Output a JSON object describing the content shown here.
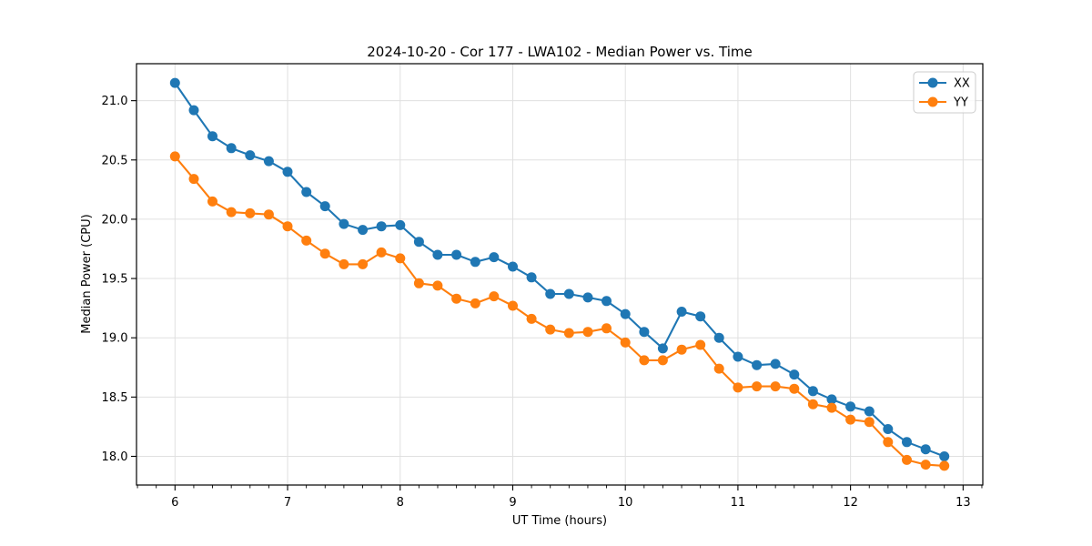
{
  "chart_data": {
    "type": "line",
    "title": "2024-10-20 - Cor 177 - LWA102 - Median Power vs. Time",
    "xlabel": "UT Time (hours)",
    "ylabel": "Median Power (CPU)",
    "xlim": [
      5.658,
      13.175
    ],
    "ylim": [
      17.758,
      21.312
    ],
    "xticks": [
      6,
      7,
      8,
      9,
      10,
      11,
      12,
      13
    ],
    "yticks": [
      18.0,
      18.5,
      19.0,
      19.5,
      20.0,
      20.5,
      21.0
    ],
    "x_minor_tick_step": 0.1667,
    "grid": true,
    "legend_position": "upper right",
    "x": [
      6.0,
      6.167,
      6.333,
      6.5,
      6.667,
      6.833,
      7.0,
      7.167,
      7.333,
      7.5,
      7.667,
      7.833,
      8.0,
      8.167,
      8.333,
      8.5,
      8.667,
      8.833,
      9.0,
      9.167,
      9.333,
      9.5,
      9.667,
      9.833,
      10.0,
      10.167,
      10.333,
      10.5,
      10.667,
      10.833,
      11.0,
      11.167,
      11.333,
      11.5,
      11.667,
      11.833,
      12.0,
      12.167,
      12.333,
      12.5,
      12.667,
      12.833
    ],
    "series": [
      {
        "name": "XX",
        "color": "#1f77b4",
        "values": [
          21.15,
          20.92,
          20.7,
          20.6,
          20.54,
          20.49,
          20.4,
          20.23,
          20.11,
          19.96,
          19.91,
          19.94,
          19.95,
          19.81,
          19.7,
          19.7,
          19.64,
          19.68,
          19.6,
          19.51,
          19.37,
          19.37,
          19.34,
          19.31,
          19.2,
          19.05,
          18.91,
          19.22,
          19.18,
          19.0,
          18.84,
          18.77,
          18.78,
          18.69,
          18.55,
          18.48,
          18.42,
          18.38,
          18.23,
          18.12,
          18.06,
          18.0
        ]
      },
      {
        "name": "YY",
        "color": "#ff7f0e",
        "values": [
          20.53,
          20.34,
          20.15,
          20.06,
          20.05,
          20.04,
          19.94,
          19.82,
          19.71,
          19.62,
          19.62,
          19.72,
          19.67,
          19.46,
          19.44,
          19.33,
          19.29,
          19.35,
          19.27,
          19.16,
          19.07,
          19.04,
          19.05,
          19.08,
          18.96,
          18.81,
          18.81,
          18.9,
          18.94,
          18.74,
          18.58,
          18.59,
          18.59,
          18.57,
          18.44,
          18.41,
          18.31,
          18.29,
          18.12,
          17.97,
          17.93,
          17.92
        ]
      }
    ]
  },
  "colors": {
    "grid": "#e0e0e0",
    "frame": "#000000",
    "background": "#ffffff",
    "legend_border": "#cccccc"
  }
}
